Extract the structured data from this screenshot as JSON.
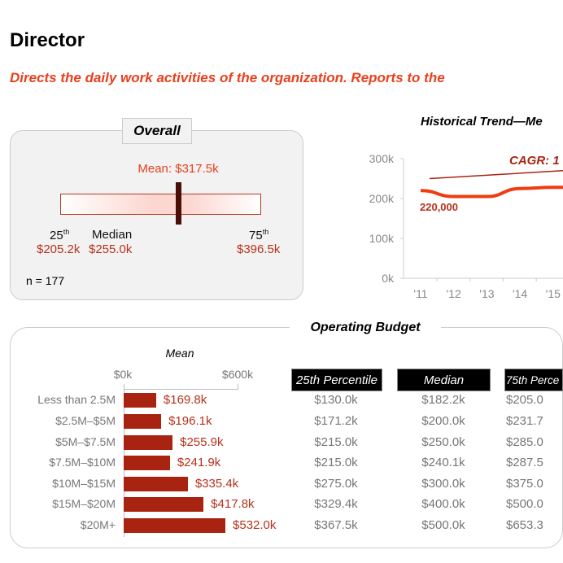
{
  "page": {
    "title": "Director",
    "subtitle": "Directs the daily work activities of the organization. Reports to the"
  },
  "overall": {
    "label": "Overall",
    "mean_label": "Mean: $317.5k",
    "p25_label": "25",
    "p25_sup": "th",
    "p25_value": "$205.2k",
    "median_label": "Median",
    "median_value": "$255.0k",
    "p75_label": "75",
    "p75_sup": "th",
    "p75_value": "$396.5k",
    "n_label": "n = 177",
    "bar_color": "#fcd7d2",
    "marker_color": "#4a0e06"
  },
  "chart_data": [
    {
      "type": "line",
      "title": "Historical Trend—Me",
      "x": [
        "'11",
        "'12",
        "'13",
        "'14",
        "'15"
      ],
      "y_ticks": [
        "0k",
        "100k",
        "200k",
        "300k"
      ],
      "ylim": [
        0,
        300000
      ],
      "series": [
        {
          "values": [
            220000,
            205000,
            205000,
            225000,
            228000
          ],
          "color": "#f03c10"
        }
      ],
      "trend": {
        "label": "CAGR: 1",
        "start": 250000,
        "end": 272000,
        "color": "#a92410"
      },
      "annotations": [
        "220,000"
      ]
    },
    {
      "type": "bar",
      "orientation": "horizontal",
      "title": "Operating Budget",
      "xlabel": "Mean",
      "x_ticks": [
        "$0k",
        "$600k"
      ],
      "xlim": [
        0,
        600
      ],
      "categories": [
        "Less than 2.5M",
        "$2.5M–$5M",
        "$5M–$7.5M",
        "$7.5M–$10M",
        "$10M–$15M",
        "$15M–$20M",
        "$20M+"
      ],
      "values": [
        169.8,
        196.1,
        255.9,
        241.9,
        335.4,
        417.8,
        532.0
      ],
      "labels": [
        "$169.8k",
        "$196.1k",
        "$255.9k",
        "$241.9k",
        "$335.4k",
        "$417.8k",
        "$532.0k"
      ],
      "color": "#a92410"
    }
  ],
  "table": {
    "headers": [
      "25th Percentile",
      "Median",
      "75th Perce"
    ],
    "rows": [
      [
        "$130.0k",
        "$182.2k",
        "$205.0"
      ],
      [
        "$171.2k",
        "$200.0k",
        "$231.7"
      ],
      [
        "$215.0k",
        "$250.0k",
        "$285.0"
      ],
      [
        "$215.0k",
        "$240.1k",
        "$287.5"
      ],
      [
        "$275.0k",
        "$300.0k",
        "$375.0"
      ],
      [
        "$329.4k",
        "$400.0k",
        "$500.0"
      ],
      [
        "$367.5k",
        "$500.0k",
        "$653.3"
      ]
    ]
  }
}
